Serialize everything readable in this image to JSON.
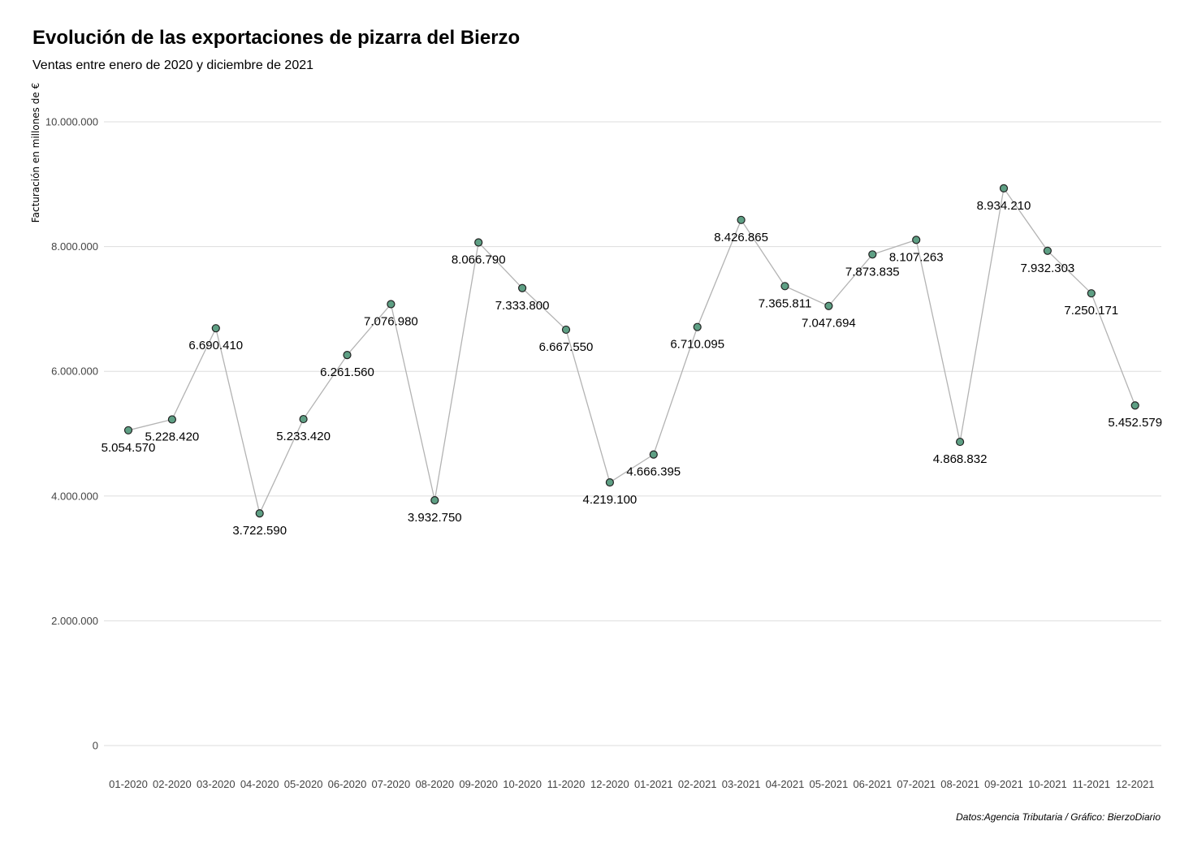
{
  "chart_data": {
    "type": "line",
    "title": "Evolución de las exportaciones de pizarra del Bierzo",
    "subtitle": "Ventas entre enero de 2020 y diciembre de 2021",
    "ylabel": "Facturación en millones de €",
    "xlabel": "",
    "caption": "Datos:Agencia Tributaria / Gráfico: BierzoDiario",
    "ylim": [
      0,
      10000000
    ],
    "yticks": [
      0,
      2000000,
      4000000,
      6000000,
      8000000,
      10000000
    ],
    "ytick_labels": [
      "0",
      "2.000.000",
      "4.000.000",
      "6.000.000",
      "8.000.000",
      "10.000.000"
    ],
    "grid": "horizontal",
    "legend": "none",
    "colors": {
      "line": "#b3b3b3",
      "point_fill": "#5e9f84",
      "point_stroke": "#222222",
      "grid": "#dddddd"
    },
    "categories": [
      "01-2020",
      "02-2020",
      "03-2020",
      "04-2020",
      "05-2020",
      "06-2020",
      "07-2020",
      "08-2020",
      "09-2020",
      "10-2020",
      "11-2020",
      "12-2020",
      "01-2021",
      "02-2021",
      "03-2021",
      "04-2021",
      "05-2021",
      "06-2021",
      "07-2021",
      "08-2021",
      "09-2021",
      "10-2021",
      "11-2021",
      "12-2021"
    ],
    "values": [
      5054570,
      5228420,
      6690410,
      3722590,
      5233420,
      6261560,
      7076980,
      3932750,
      8066790,
      7333800,
      6667550,
      4219100,
      4666395,
      6710095,
      8426865,
      7365811,
      7047694,
      7873835,
      8107263,
      4868832,
      8934210,
      7932303,
      7250171,
      5452579
    ],
    "value_labels": [
      "5.054.570",
      "5.228.420",
      "6.690.410",
      "3.722.590",
      "5.233.420",
      "6.261.560",
      "7.076.980",
      "3.932.750",
      "8.066.790",
      "7.333.800",
      "6.667.550",
      "4.219.100",
      "4.666.395",
      "6.710.095",
      "8.426.865",
      "7.365.811",
      "7.047.694",
      "7.873.835",
      "8.107.263",
      "4.868.832",
      "8.934.210",
      "7.932.303",
      "7.250.171",
      "5.452.579"
    ]
  }
}
